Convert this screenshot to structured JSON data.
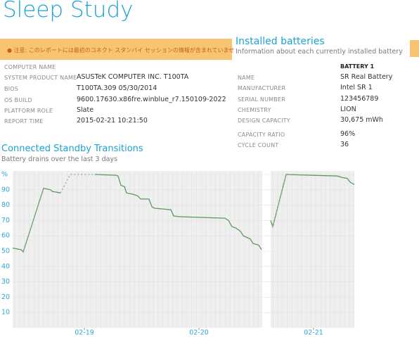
{
  "header": {
    "title": "Sleep Study"
  },
  "notice": "● 注意: このレポートには最初のコネクト スタンバイ セッションの情報が含まれていませ",
  "system_info": {
    "rows": [
      {
        "label": "COMPUTER NAME"
      },
      {
        "label": "SYSTEM PRODUCT NAME",
        "value": "ASUSTeK COMPUTER INC. T100TA"
      },
      {
        "label": "BIOS",
        "value": "T100TA.309 05/30/2014"
      },
      {
        "label": "OS BUILD",
        "value": "9600.17630.x86fre.winblue_r7.150109-2022"
      },
      {
        "label": "PLATFORM ROLE",
        "value": "Slate"
      },
      {
        "label": "REPORT TIME",
        "value": "2015-02-21 10:21:50"
      }
    ]
  },
  "batteries": {
    "title": "Installed batteries",
    "subtitle": "Information about each currently installed battery",
    "column": "BATTERY 1",
    "rows": [
      {
        "label": "NAME",
        "value": "SR Real Battery"
      },
      {
        "label": "MANUFACTURER",
        "value": "Intel SR 1"
      },
      {
        "label": "SERIAL NUMBER",
        "value": "123456789"
      },
      {
        "label": "CHEMISTRY",
        "value": "LION"
      },
      {
        "label": "DESIGN CAPACITY",
        "value": "30,675 mWh"
      },
      {
        "label": "CAPACITY RATIO",
        "value": "96%"
      },
      {
        "label": "CYCLE COUNT",
        "value": "36"
      }
    ]
  },
  "chart_data": {
    "type": "line",
    "title": "Connected Standby Transitions",
    "subtitle": "Battery drains over the last 3 days",
    "x": [
      0.374,
      0.448,
      0.466,
      0.644,
      0.706,
      0.718,
      0.791,
      0.877,
      1.092,
      1.276,
      1.294,
      1.319,
      1.35,
      1.368,
      1.429,
      1.466,
      1.491,
      1.564,
      1.589,
      1.613,
      1.755,
      1.779,
      1.828,
      2.227,
      2.258,
      2.288,
      2.325,
      2.362,
      2.387,
      2.448,
      2.472,
      2.521,
      2.546,
      2.586,
      2.626,
      2.644,
      2.761,
      3.209,
      3.252,
      3.294,
      3.319,
      3.356
    ],
    "xlim": [
      0.374,
      3.356
    ],
    "xticks": [
      {
        "value": 1,
        "label": "02-19"
      },
      {
        "value": 2,
        "label": "02-20"
      },
      {
        "value": 3,
        "label": "02-21"
      }
    ],
    "ylim": [
      0,
      100
    ],
    "yticks": [
      {
        "value": 100,
        "label": "%"
      },
      90,
      80,
      70,
      60,
      50,
      40,
      30,
      20,
      10
    ],
    "series": [
      {
        "color": "#5b9a5b",
        "style": "solid",
        "values": [
          52,
          51,
          49.5,
          91,
          90,
          89,
          88,
          null,
          100,
          99.5,
          99,
          93,
          92,
          88,
          87,
          86,
          84,
          84,
          79,
          78,
          77,
          73,
          72.5,
          71.5,
          70,
          66,
          65,
          63,
          60,
          58,
          55,
          54,
          51,
          null,
          70,
          66,
          100,
          99,
          98,
          97.5,
          95,
          93.5
        ]
      },
      {
        "color": "#8db08d",
        "style": "dotted",
        "values": [
          null,
          null,
          49.5,
          91,
          null,
          null,
          88,
          100,
          100,
          null,
          null,
          null,
          null,
          null,
          null,
          null,
          null,
          null,
          null,
          null,
          null,
          null,
          null,
          null,
          null,
          null,
          null,
          null,
          null,
          null,
          null,
          null,
          null,
          null,
          null,
          66,
          100,
          null,
          null,
          null,
          null,
          null
        ]
      }
    ]
  }
}
